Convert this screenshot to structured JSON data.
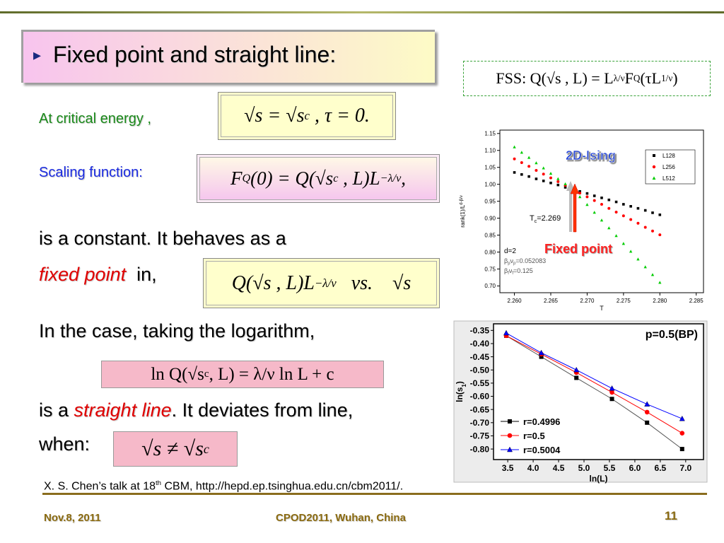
{
  "slide": {
    "title": "Fixed point and straight line:",
    "bullet": "▸",
    "fss": [
      {
        "text": "FSS: Q(√s , L) = L"
      },
      {
        "text": "λ/ν",
        "pos": "sup"
      },
      {
        "text": "F"
      },
      {
        "text": "Q",
        "pos": "sub"
      },
      {
        "text": "(τL"
      },
      {
        "text": "1/ν",
        "pos": "sup"
      },
      {
        "text": ")"
      }
    ],
    "line1": "At critical energy ,",
    "formula1": [
      {
        "text": "√s = √s"
      },
      {
        "text": "c",
        "pos": "sub"
      },
      {
        "text": " , τ = 0."
      }
    ],
    "line2": "Scaling function:",
    "formula2": [
      {
        "text": "F"
      },
      {
        "text": "Q",
        "pos": "sub"
      },
      {
        "text": "(0) = Q(√s"
      },
      {
        "text": "c",
        "pos": "sub"
      },
      {
        "text": " , L)L"
      },
      {
        "text": "−λ/ν",
        "pos": "sup"
      },
      {
        "text": ","
      }
    ],
    "line3": "is a constant. It behaves as a",
    "line4": [
      "fixed point",
      "in,"
    ],
    "formula3": [
      {
        "text": "Q(√s , L)L"
      },
      {
        "text": "−λ/ν",
        "pos": "sup"
      },
      {
        "text": "   vs.    √s"
      }
    ],
    "line5": "In the case, taking the logarithm,",
    "formula4": [
      {
        "text": "ln Q(√s"
      },
      {
        "text": "c",
        "pos": "sub"
      },
      {
        "text": ", L) = λ/ν ln L + c"
      }
    ],
    "line6": [
      "is a ",
      "straight line",
      ". It deviates from line,"
    ],
    "line7": "when:",
    "formula5": [
      {
        "text": "√s ≠ √s"
      },
      {
        "text": "c",
        "pos": "sub"
      }
    ],
    "reference": [
      "X. S. Chen’s talk at 18",
      "th",
      " CBM, http://hepd.ep.tsinghua.edu.cn/cbm2011/."
    ],
    "footer": {
      "date": "Nov.8, 2011",
      "venue": "CPOD2011, Wuhan, China",
      "page": "11"
    }
  },
  "chart_data": [
    {
      "type": "scatter",
      "xlabel": "T",
      "ylabel": [
        {
          "text": "rank(1)/L"
        },
        {
          "text": "d-β/ν",
          "pos": "sup"
        }
      ],
      "xlim": [
        2.258,
        2.286
      ],
      "ylim": [
        0.68,
        1.16
      ],
      "xticks": [
        {
          "value": 2.26,
          "label": "2.260"
        },
        2.265,
        {
          "value": 2.27,
          "label": "2.270"
        },
        2.275,
        {
          "value": 2.28,
          "label": "2.280"
        },
        2.285
      ],
      "yticks": [
        1.15,
        {
          "value": 1.1,
          "label": "1.10"
        },
        1.05,
        {
          "value": 1.0,
          "label": "1.00"
        },
        0.95,
        {
          "value": 0.9,
          "label": "0.90"
        },
        0.85,
        {
          "value": 0.8,
          "label": "0.80"
        },
        0.75,
        {
          "value": 0.7,
          "label": "0.70"
        }
      ],
      "x": [
        2.26,
        2.261,
        2.262,
        2.263,
        2.264,
        2.265,
        2.266,
        2.267,
        2.268,
        2.269,
        2.27,
        2.271,
        2.272,
        2.273,
        2.274,
        2.275,
        2.276,
        2.277,
        2.278,
        2.279,
        2.28
      ],
      "series": [
        {
          "name": "L128",
          "color": "#000000",
          "marker": "square",
          "values": [
            1.035,
            1.029,
            1.023,
            1.016,
            1.01,
            1.004,
            0.998,
            0.991,
            0.985,
            0.979,
            0.973,
            0.966,
            0.96,
            0.954,
            0.948,
            0.941,
            0.935,
            0.929,
            0.923,
            0.916,
            0.91
          ]
        },
        {
          "name": "L256",
          "color": "#ff0000",
          "marker": "circle",
          "values": [
            1.075,
            1.064,
            1.053,
            1.041,
            1.03,
            1.019,
            1.008,
            0.997,
            0.985,
            0.974,
            0.963,
            0.952,
            0.941,
            0.929,
            0.918,
            0.907,
            0.896,
            0.885,
            0.873,
            0.862,
            0.851
          ]
        },
        {
          "name": "L512",
          "color": "#00cc00",
          "marker": "triangle",
          "values": [
            1.11,
            1.094,
            1.079,
            1.063,
            1.048,
            1.032,
            1.016,
            1.001,
            0.985,
            0.963,
            0.94,
            0.917,
            0.894,
            0.871,
            0.848,
            0.825,
            0.802,
            0.779,
            0.756,
            0.733,
            0.71
          ]
        }
      ],
      "annotations": {
        "ising": "2D-Ising",
        "tc": [
          "T",
          "c",
          "=2.269"
        ],
        "fixed": "Fixed point",
        "d": "d=2",
        "beta_p": [
          "β",
          "p",
          "ν",
          "p",
          "=0.052083"
        ],
        "beta_f": [
          "β",
          "f",
          "ν",
          "f",
          "=0.125"
        ]
      }
    },
    {
      "type": "line",
      "title": "p=0.5(BP)",
      "xlabel": "ln(L)",
      "ylabel": [
        {
          "text": "ln(s"
        },
        {
          "text": "1",
          "pos": "sub"
        },
        {
          "text": ")"
        }
      ],
      "xlim": [
        3.22,
        7.35
      ],
      "ylim": [
        -0.84,
        -0.325
      ],
      "xticks": [
        3.5,
        {
          "value": 4.0,
          "label": "4.0"
        },
        4.5,
        {
          "value": 5.0,
          "label": "5.0"
        },
        5.5,
        {
          "value": 6.0,
          "label": "6.0"
        },
        6.5,
        {
          "value": 7.0,
          "label": "7.0"
        }
      ],
      "yticks": [
        -0.35,
        {
          "value": -0.4,
          "label": "-0.40"
        },
        -0.45,
        {
          "value": -0.5,
          "label": "-0.50"
        },
        -0.55,
        {
          "value": -0.6,
          "label": "-0.60"
        },
        -0.65,
        {
          "value": -0.7,
          "label": "-0.70"
        },
        -0.75,
        {
          "value": -0.8,
          "label": "-0.80"
        }
      ],
      "x": [
        3.47,
        4.16,
        4.85,
        5.55,
        6.24,
        6.93
      ],
      "series": [
        {
          "name": "r=0.4996",
          "color": "#000000",
          "marker": "square",
          "values": [
            -0.37,
            -0.45,
            -0.53,
            -0.61,
            -0.7,
            -0.8
          ]
        },
        {
          "name": "r=0.5",
          "color": "#ff0000",
          "marker": "circle",
          "values": [
            -0.37,
            -0.44,
            -0.51,
            -0.585,
            -0.66,
            -0.74
          ]
        },
        {
          "name": "r=0.5004",
          "color": "#0000ff",
          "marker": "triangle",
          "values": [
            -0.36,
            -0.435,
            -0.5,
            -0.57,
            -0.63,
            -0.685
          ]
        }
      ]
    }
  ]
}
